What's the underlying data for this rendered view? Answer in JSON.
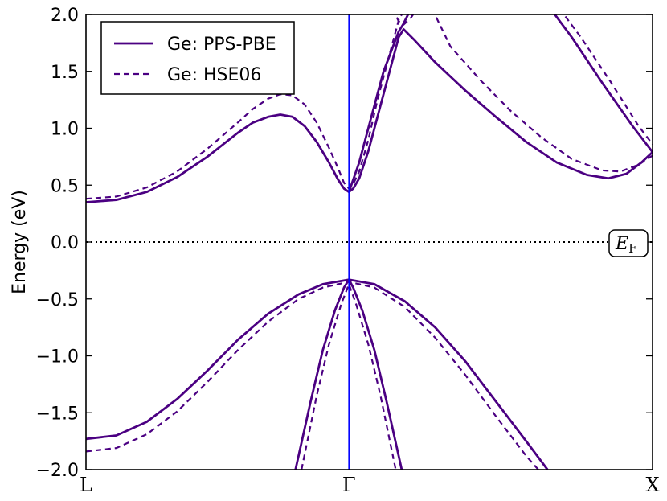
{
  "chart_data": {
    "type": "line",
    "title": "",
    "xlabel": "",
    "ylabel": "Energy (eV)",
    "ylim": [
      -2.0,
      2.0
    ],
    "yticks": [
      "−2.0",
      "−1.5",
      "−1.0",
      "−0.5",
      "0.0",
      "0.5",
      "1.0",
      "1.5",
      "2.0"
    ],
    "ytick_values": [
      -2.0,
      -1.5,
      -1.0,
      -0.5,
      0.0,
      0.5,
      1.0,
      1.5,
      2.0
    ],
    "k_points": [
      "L",
      "Γ",
      "X"
    ],
    "k_positions": [
      0.0,
      0.866,
      1.866
    ],
    "fermi_level": {
      "value": 0.0,
      "label": "E",
      "label_sub": "F"
    },
    "legend": {
      "position": "top-left"
    },
    "colors": {
      "bands": "#4b0082",
      "gamma_line": "#0000ff"
    },
    "series": [
      {
        "name": "Ge: PPS-PBE",
        "style": "solid",
        "bands": [
          [
            [
              0.0,
              0.35
            ],
            [
              0.1,
              0.37
            ],
            [
              0.2,
              0.44
            ],
            [
              0.3,
              0.57
            ],
            [
              0.4,
              0.75
            ],
            [
              0.5,
              0.96
            ],
            [
              0.55,
              1.05
            ],
            [
              0.6,
              1.1
            ],
            [
              0.64,
              1.12
            ],
            [
              0.68,
              1.1
            ],
            [
              0.72,
              1.02
            ],
            [
              0.76,
              0.88
            ],
            [
              0.8,
              0.7
            ],
            [
              0.83,
              0.55
            ],
            [
              0.85,
              0.47
            ],
            [
              0.866,
              0.44
            ],
            [
              0.88,
              0.47
            ],
            [
              0.9,
              0.56
            ],
            [
              0.93,
              0.8
            ],
            [
              0.96,
              1.1
            ],
            [
              1.0,
              1.5
            ],
            [
              1.03,
              1.8
            ],
            [
              1.046,
              1.87
            ],
            [
              1.08,
              1.78
            ],
            [
              1.15,
              1.58
            ],
            [
              1.25,
              1.33
            ],
            [
              1.35,
              1.1
            ],
            [
              1.45,
              0.88
            ],
            [
              1.55,
              0.7
            ],
            [
              1.65,
              0.59
            ],
            [
              1.72,
              0.56
            ],
            [
              1.78,
              0.6
            ],
            [
              1.83,
              0.7
            ],
            [
              1.866,
              0.79
            ]
          ],
          [
            [
              0.866,
              0.44
            ],
            [
              0.9,
              0.7
            ],
            [
              0.94,
              1.1
            ],
            [
              0.98,
              1.5
            ],
            [
              1.03,
              1.85
            ],
            [
              1.046,
              1.92
            ],
            [
              1.07,
              2.05
            ]
          ],
          [
            [
              1.53,
              2.05
            ],
            [
              1.6,
              1.8
            ],
            [
              1.7,
              1.4
            ],
            [
              1.8,
              1.02
            ],
            [
              1.866,
              0.79
            ]
          ],
          [
            [
              0.0,
              -1.73
            ],
            [
              0.1,
              -1.7
            ],
            [
              0.2,
              -1.58
            ],
            [
              0.3,
              -1.38
            ],
            [
              0.4,
              -1.13
            ],
            [
              0.5,
              -0.86
            ],
            [
              0.6,
              -0.63
            ],
            [
              0.7,
              -0.46
            ],
            [
              0.78,
              -0.37
            ],
            [
              0.866,
              -0.33
            ],
            [
              0.95,
              -0.37
            ],
            [
              1.05,
              -0.52
            ],
            [
              1.15,
              -0.75
            ],
            [
              1.25,
              -1.05
            ],
            [
              1.35,
              -1.4
            ],
            [
              1.45,
              -1.75
            ],
            [
              1.52,
              -2.0
            ]
          ],
          [
            [
              0.69,
              -2.0
            ],
            [
              0.74,
              -1.4
            ],
            [
              0.78,
              -0.95
            ],
            [
              0.82,
              -0.6
            ],
            [
              0.85,
              -0.4
            ],
            [
              0.866,
              -0.33
            ],
            [
              0.88,
              -0.4
            ],
            [
              0.91,
              -0.6
            ],
            [
              0.95,
              -0.95
            ],
            [
              0.99,
              -1.4
            ],
            [
              1.04,
              -2.0
            ]
          ]
        ]
      },
      {
        "name": "Ge: HSE06",
        "style": "dashed",
        "bands": [
          [
            [
              0.0,
              0.38
            ],
            [
              0.1,
              0.4
            ],
            [
              0.2,
              0.48
            ],
            [
              0.3,
              0.62
            ],
            [
              0.4,
              0.82
            ],
            [
              0.5,
              1.05
            ],
            [
              0.55,
              1.17
            ],
            [
              0.6,
              1.26
            ],
            [
              0.64,
              1.3
            ],
            [
              0.68,
              1.29
            ],
            [
              0.72,
              1.21
            ],
            [
              0.76,
              1.05
            ],
            [
              0.8,
              0.83
            ],
            [
              0.83,
              0.65
            ],
            [
              0.85,
              0.52
            ],
            [
              0.866,
              0.47
            ],
            [
              0.88,
              0.51
            ],
            [
              0.9,
              0.62
            ],
            [
              0.93,
              0.9
            ],
            [
              0.96,
              1.25
            ],
            [
              1.0,
              1.65
            ],
            [
              1.03,
              1.95
            ],
            [
              1.05,
              2.05
            ]
          ],
          [
            [
              1.01,
              2.05
            ],
            [
              1.03,
              1.94
            ],
            [
              1.046,
              1.91
            ],
            [
              1.07,
              1.97
            ],
            [
              1.09,
              2.05
            ]
          ],
          [
            [
              1.14,
              2.05
            ],
            [
              1.2,
              1.72
            ],
            [
              1.3,
              1.42
            ],
            [
              1.4,
              1.15
            ],
            [
              1.5,
              0.92
            ],
            [
              1.6,
              0.73
            ],
            [
              1.7,
              0.63
            ],
            [
              1.76,
              0.62
            ],
            [
              1.82,
              0.68
            ],
            [
              1.866,
              0.76
            ]
          ],
          [
            [
              1.56,
              2.05
            ],
            [
              1.63,
              1.8
            ],
            [
              1.73,
              1.4
            ],
            [
              1.82,
              1.02
            ],
            [
              1.866,
              0.86
            ]
          ],
          [
            [
              0.0,
              -1.84
            ],
            [
              0.1,
              -1.81
            ],
            [
              0.2,
              -1.69
            ],
            [
              0.3,
              -1.49
            ],
            [
              0.4,
              -1.23
            ],
            [
              0.5,
              -0.95
            ],
            [
              0.6,
              -0.7
            ],
            [
              0.7,
              -0.5
            ],
            [
              0.78,
              -0.4
            ],
            [
              0.866,
              -0.35
            ],
            [
              0.95,
              -0.4
            ],
            [
              1.05,
              -0.57
            ],
            [
              1.15,
              -0.84
            ],
            [
              1.25,
              -1.17
            ],
            [
              1.35,
              -1.53
            ],
            [
              1.45,
              -1.88
            ],
            [
              1.49,
              -2.0
            ]
          ],
          [
            [
              0.71,
              -2.0
            ],
            [
              0.76,
              -1.35
            ],
            [
              0.8,
              -0.9
            ],
            [
              0.84,
              -0.55
            ],
            [
              0.866,
              -0.37
            ],
            [
              0.89,
              -0.55
            ],
            [
              0.93,
              -0.9
            ],
            [
              0.97,
              -1.35
            ],
            [
              1.02,
              -2.0
            ]
          ]
        ]
      }
    ]
  }
}
